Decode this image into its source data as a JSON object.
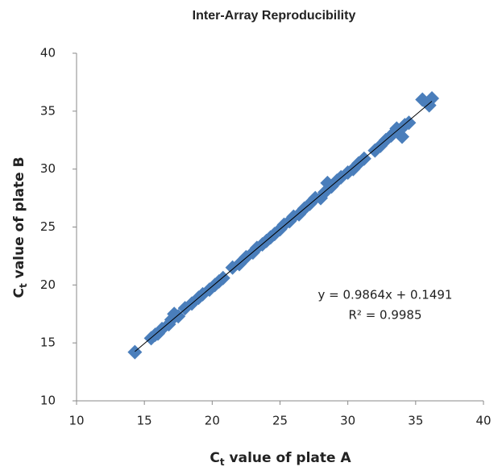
{
  "chart_data": {
    "type": "scatter",
    "title": "Inter-Array Reproducibility",
    "x_label": {
      "main": "C",
      "sub": "t",
      "rest": " value of plate A"
    },
    "y_label": {
      "main": "C",
      "sub": "t",
      "rest": " value of plate B"
    },
    "annotations": [
      "y = 0.9864x + 0.1491",
      "R² = 0.9985"
    ],
    "trendline": {
      "slope": 0.9864,
      "intercept": 0.1491,
      "color": "#000000"
    },
    "xlim": [
      10,
      40
    ],
    "xticks": [
      10,
      15,
      20,
      25,
      30,
      35,
      40
    ],
    "ylim": [
      10,
      40
    ],
    "yticks": [
      10,
      15,
      20,
      25,
      30,
      35,
      40
    ],
    "grid": false,
    "series": [
      {
        "color": "#4a7ebb",
        "x": [
          14.3,
          15.5,
          15.8,
          16.0,
          16.3,
          16.8,
          17.0,
          17.2,
          17.5,
          18.0,
          18.5,
          19.0,
          19.3,
          19.8,
          20.2,
          20.5,
          20.8,
          21.5,
          22.0,
          22.5,
          23.0,
          23.3,
          23.7,
          24.0,
          24.3,
          24.6,
          25.0,
          25.3,
          25.7,
          26.0,
          26.4,
          26.8,
          27.2,
          27.6,
          28.0,
          28.3,
          28.5,
          28.8,
          29.2,
          29.5,
          30.0,
          30.4,
          30.8,
          31.2,
          32.0,
          32.4,
          32.8,
          33.2,
          33.6,
          34.0,
          34.2,
          34.5,
          35.5,
          36.0,
          36.2
        ],
        "values": [
          14.2,
          15.4,
          15.7,
          15.8,
          16.2,
          16.6,
          17.0,
          17.5,
          17.3,
          18.0,
          18.4,
          18.9,
          19.2,
          19.6,
          20.0,
          20.3,
          20.6,
          21.5,
          21.8,
          22.4,
          22.8,
          23.2,
          23.5,
          23.8,
          24.1,
          24.4,
          24.8,
          25.2,
          25.5,
          25.9,
          26.1,
          26.6,
          27.0,
          27.5,
          27.5,
          28.0,
          28.8,
          28.5,
          29.0,
          29.3,
          29.7,
          30.0,
          30.5,
          30.9,
          31.6,
          32.0,
          32.5,
          32.9,
          33.5,
          32.8,
          33.8,
          34.0,
          36.0,
          35.5,
          36.1
        ]
      }
    ]
  }
}
